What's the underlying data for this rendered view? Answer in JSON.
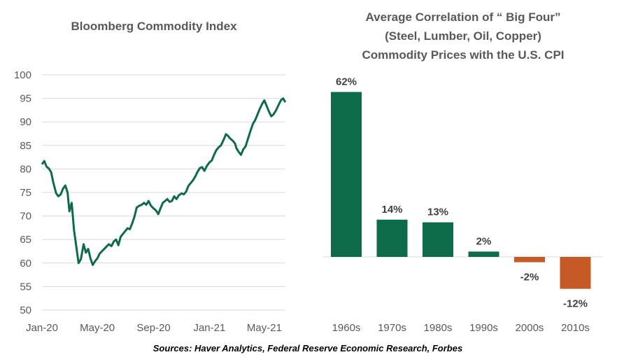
{
  "colors": {
    "line": "#0d6b4a",
    "bar_positive": "#0d6b4a",
    "bar_negative": "#c65a26",
    "grid": "#d9d9d9",
    "text": "#595959"
  },
  "source": "Sources: Haver Analytics, Federal Reserve Economic Research, Forbes",
  "chart_data": [
    {
      "type": "line",
      "title": "Bloomberg Commodity Index",
      "xlabel": "",
      "ylabel": "",
      "ylim": [
        50,
        100
      ],
      "yticks": [
        50,
        55,
        60,
        65,
        70,
        75,
        80,
        85,
        90,
        95,
        100
      ],
      "grid": true,
      "x_tick_labels": [
        "Jan-20",
        "May-20",
        "Sep-20",
        "Jan-21",
        "May-21"
      ],
      "x_tick_dates": [
        "2020-01-01",
        "2020-05-01",
        "2020-09-01",
        "2021-01-01",
        "2021-05-01"
      ],
      "xlim": [
        "2020-01-01",
        "2021-06-16"
      ],
      "series": [
        {
          "x": [
            "2020-01-01",
            "2020-01-06",
            "2020-01-11",
            "2020-01-16",
            "2020-01-21",
            "2020-01-26",
            "2020-02-01",
            "2020-02-06",
            "2020-02-11",
            "2020-02-16",
            "2020-02-21",
            "2020-02-26",
            "2020-03-01",
            "2020-03-06",
            "2020-03-11",
            "2020-03-16",
            "2020-03-21",
            "2020-03-26",
            "2020-04-01",
            "2020-04-06",
            "2020-04-11",
            "2020-04-16",
            "2020-04-21",
            "2020-04-26",
            "2020-05-01",
            "2020-05-06",
            "2020-05-11",
            "2020-05-16",
            "2020-05-21",
            "2020-05-26",
            "2020-06-01",
            "2020-06-06",
            "2020-06-11",
            "2020-06-16",
            "2020-06-21",
            "2020-06-26",
            "2020-07-01",
            "2020-07-06",
            "2020-07-11",
            "2020-07-16",
            "2020-07-21",
            "2020-07-26",
            "2020-08-01",
            "2020-08-06",
            "2020-08-11",
            "2020-08-16",
            "2020-08-21",
            "2020-08-26",
            "2020-09-01",
            "2020-09-06",
            "2020-09-11",
            "2020-09-16",
            "2020-09-21",
            "2020-09-26",
            "2020-10-01",
            "2020-10-06",
            "2020-10-11",
            "2020-10-16",
            "2020-10-21",
            "2020-10-26",
            "2020-11-01",
            "2020-11-06",
            "2020-11-11",
            "2020-11-16",
            "2020-11-21",
            "2020-11-26",
            "2020-12-01",
            "2020-12-06",
            "2020-12-11",
            "2020-12-16",
            "2020-12-21",
            "2020-12-26",
            "2021-01-01",
            "2021-01-06",
            "2021-01-11",
            "2021-01-16",
            "2021-01-21",
            "2021-01-26",
            "2021-02-01",
            "2021-02-06",
            "2021-02-11",
            "2021-02-16",
            "2021-02-21",
            "2021-02-26",
            "2021-03-01",
            "2021-03-06",
            "2021-03-11",
            "2021-03-16",
            "2021-03-21",
            "2021-03-26",
            "2021-04-01",
            "2021-04-06",
            "2021-04-11",
            "2021-04-16",
            "2021-04-21",
            "2021-04-26",
            "2021-05-01",
            "2021-05-06",
            "2021-05-11",
            "2021-05-16",
            "2021-05-21",
            "2021-05-26",
            "2021-06-01",
            "2021-06-06",
            "2021-06-11",
            "2021-06-16"
          ],
          "y": [
            81.0,
            81.7,
            80.5,
            80.1,
            79.3,
            77.0,
            74.8,
            74.2,
            74.6,
            75.8,
            76.5,
            75.0,
            71.0,
            72.8,
            67.0,
            63.5,
            60.0,
            60.8,
            64.0,
            62.2,
            63.0,
            61.0,
            59.6,
            60.4,
            61.0,
            62.0,
            62.5,
            63.0,
            63.5,
            64.0,
            63.6,
            64.6,
            65.0,
            63.8,
            65.6,
            66.2,
            66.8,
            67.4,
            67.2,
            68.4,
            69.8,
            71.8,
            72.2,
            72.4,
            72.8,
            72.4,
            73.2,
            72.2,
            71.6,
            71.2,
            70.4,
            71.6,
            72.8,
            73.2,
            73.6,
            73.0,
            73.2,
            74.2,
            73.6,
            74.4,
            74.8,
            74.6,
            75.2,
            76.4,
            77.0,
            77.6,
            78.4,
            79.4,
            80.2,
            80.4,
            79.6,
            80.6,
            81.4,
            81.8,
            83.0,
            84.0,
            84.6,
            85.0,
            86.2,
            87.4,
            87.0,
            86.4,
            86.0,
            85.4,
            84.4,
            83.6,
            83.0,
            84.2,
            84.8,
            86.4,
            88.2,
            89.6,
            90.4,
            91.6,
            92.8,
            93.8,
            94.6,
            93.4,
            92.2,
            91.2,
            91.6,
            92.4,
            93.6,
            94.6,
            95.0,
            94.2
          ]
        }
      ]
    },
    {
      "type": "bar",
      "title": "Average Correlation of “ Big Four” (Steel, Lumber, Oil, Copper) Commodity Prices with the U.S. CPI",
      "title_lines": [
        "Average Correlation of “ Big Four”",
        "(Steel, Lumber, Oil, Copper)",
        "Commodity Prices with the U.S. CPI"
      ],
      "xlabel": "",
      "ylabel": "",
      "categories": [
        "1960s",
        "1970s",
        "1980s",
        "1990s",
        "2000s",
        "2010s"
      ],
      "values": [
        62,
        14,
        13,
        2,
        -2,
        -12
      ],
      "value_labels": [
        "62%",
        "14%",
        "13%",
        "2%",
        "-2%",
        "-12%"
      ],
      "unit": "%",
      "grid": false
    }
  ]
}
